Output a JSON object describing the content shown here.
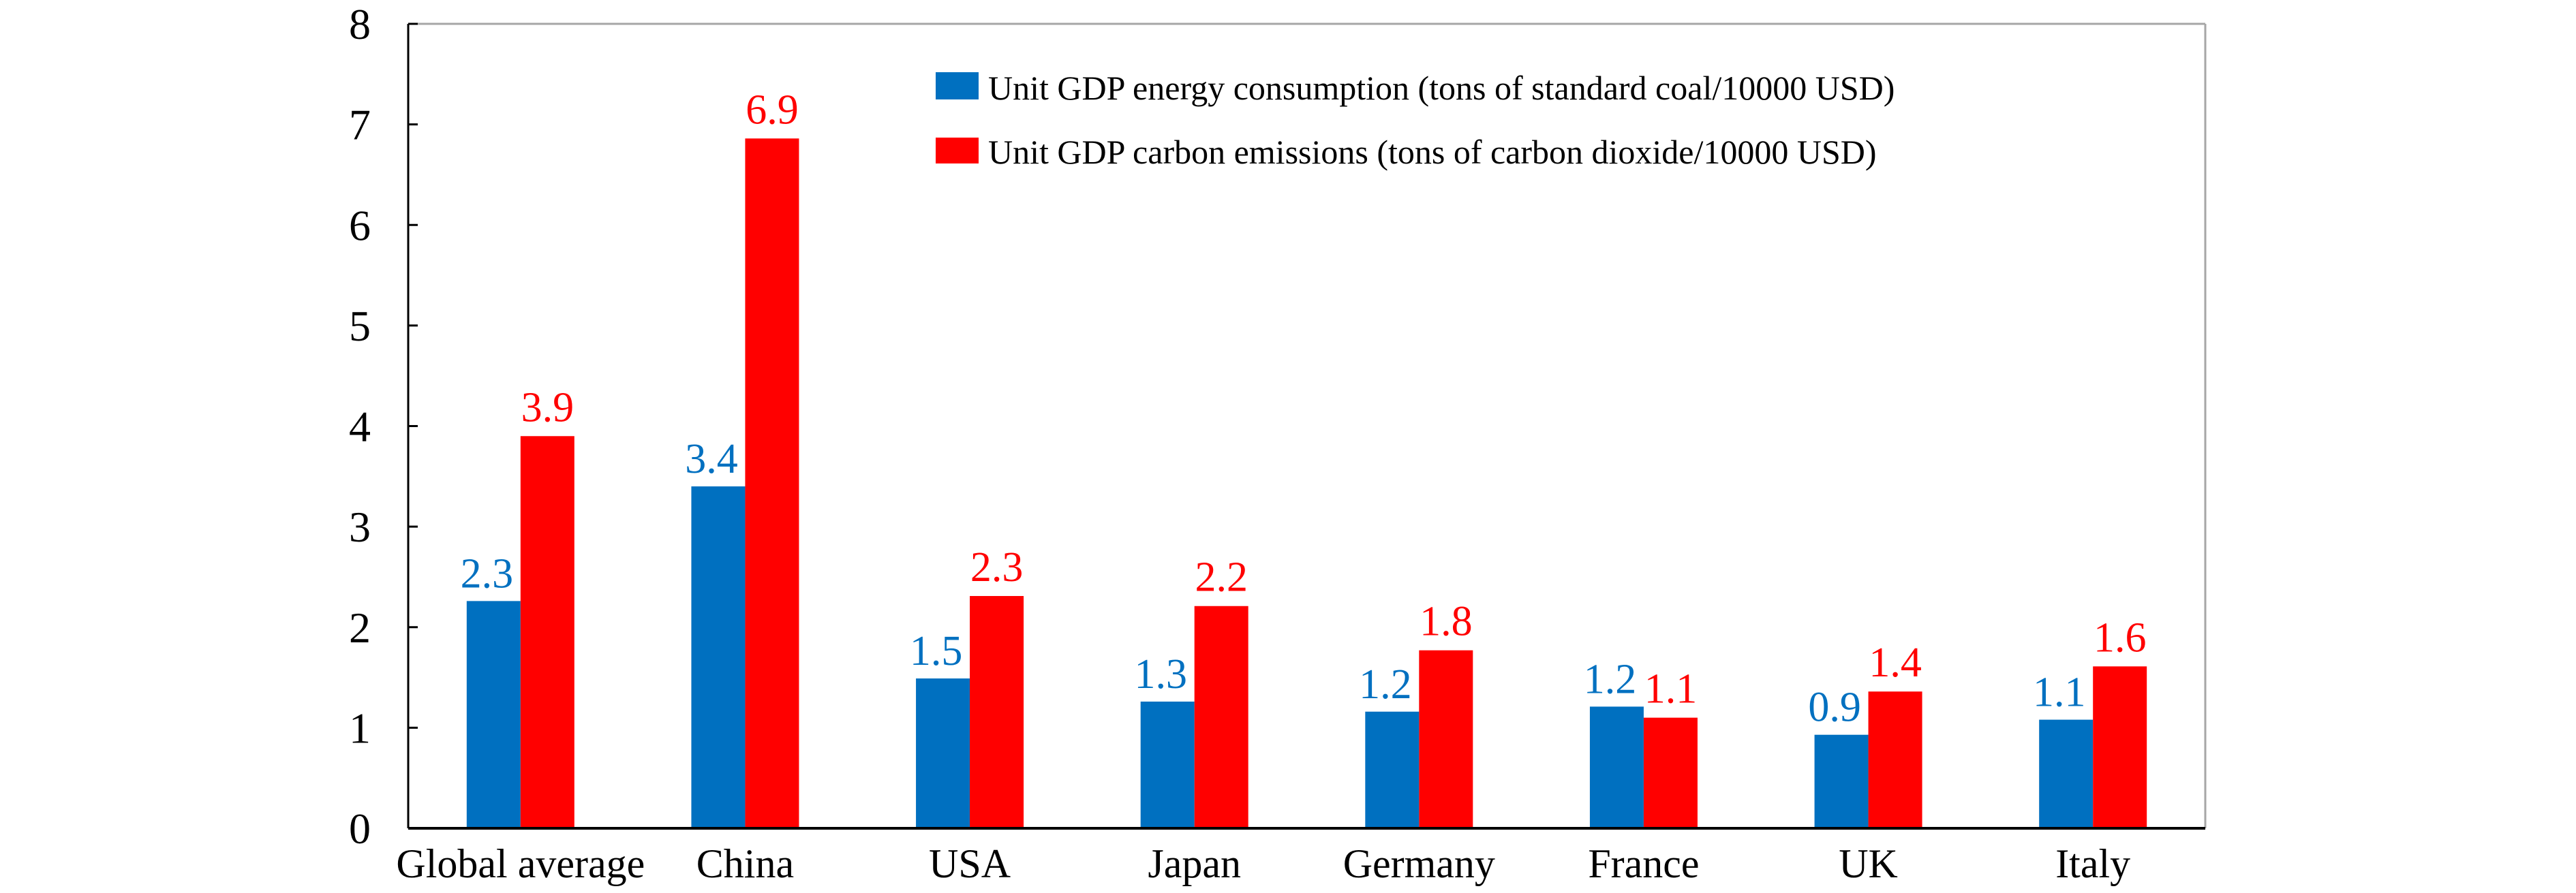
{
  "chart_data": {
    "type": "bar",
    "title": "",
    "xlabel": "",
    "ylabel": "",
    "ylim": [
      0,
      8
    ],
    "yticks": [
      0,
      1,
      2,
      3,
      4,
      5,
      6,
      7,
      8
    ],
    "grid": false,
    "legend_position": "top-right",
    "categories": [
      "Global average",
      "China",
      "USA",
      "Japan",
      "Germany",
      "France",
      "UK",
      "Italy"
    ],
    "series": [
      {
        "name": "Unit GDP energy consumption (tons of standard coal/10000 USD)",
        "color": "#0070C0",
        "values": [
          2.26,
          3.4,
          1.49,
          1.26,
          1.16,
          1.21,
          0.93,
          1.08
        ],
        "labels": [
          "2.3",
          "3.4",
          "1.5",
          "1.3",
          "1.2",
          "1.2",
          "0.9",
          "1.1"
        ]
      },
      {
        "name": "Unit GDP carbon emissions (tons of carbon dioxide/10000 USD)",
        "color": "#FF0000",
        "values": [
          3.9,
          6.86,
          2.31,
          2.21,
          1.77,
          1.1,
          1.36,
          1.61
        ],
        "labels": [
          "3.9",
          "6.9",
          "2.3",
          "2.2",
          "1.8",
          "1.1",
          "1.4",
          "1.6"
        ]
      }
    ]
  }
}
